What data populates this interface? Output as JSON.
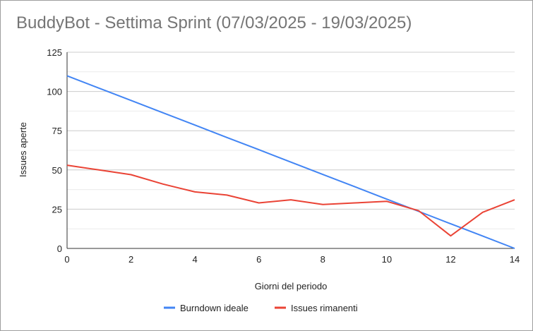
{
  "chart_data": {
    "type": "line",
    "title": "BuddyBot - Settima Sprint (07/03/2025 - 19/03/2025)",
    "xlabel": "Giorni del periodo",
    "ylabel": "Issues aperte",
    "x": [
      0,
      1,
      2,
      3,
      4,
      5,
      6,
      7,
      8,
      9,
      10,
      11,
      12,
      13,
      14
    ],
    "xlim": [
      0,
      14
    ],
    "ylim": [
      0,
      125
    ],
    "xticks": [
      "0",
      "2",
      "4",
      "6",
      "8",
      "10",
      "12",
      "14"
    ],
    "yticks": [
      "0",
      "25",
      "50",
      "75",
      "100",
      "125"
    ],
    "grid": true,
    "legend_position": "bottom",
    "series": [
      {
        "name": "Burndown ideale",
        "color": "#4285f4",
        "values": [
          110,
          102.1,
          94.3,
          86.4,
          78.6,
          70.7,
          62.9,
          55,
          47.1,
          39.3,
          31.4,
          23.6,
          15.7,
          7.9,
          0
        ]
      },
      {
        "name": "Issues rimanenti",
        "color": "#ea4335",
        "values": [
          53,
          50,
          47,
          41,
          36,
          34,
          29,
          31,
          28,
          29,
          30,
          24,
          8,
          23,
          31
        ]
      }
    ]
  }
}
